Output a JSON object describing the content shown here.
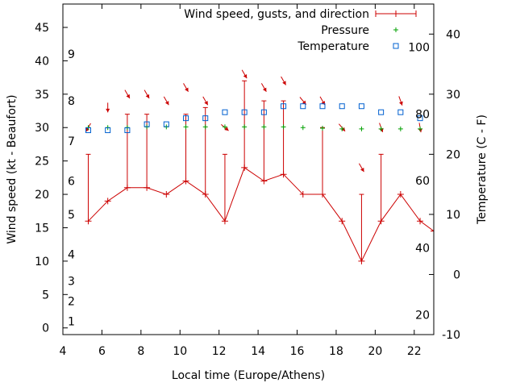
{
  "chart_data": {
    "type": "line",
    "xlabel": "Local time (Europe/Athens)",
    "ylabel": "Wind speed (kt - Beaufort)",
    "y2label": "Temperature (C - F)",
    "xlim": [
      4,
      23
    ],
    "ylim": [
      -1,
      48.5
    ],
    "y2lim": [
      -10,
      45
    ],
    "x_ticks": [
      "4",
      "6",
      "8",
      "10",
      "12",
      "14",
      "16",
      "18",
      "20",
      "22"
    ],
    "y_ticks": [
      "0",
      "5",
      "10",
      "15",
      "20",
      "25",
      "30",
      "35",
      "40",
      "45"
    ],
    "y2_ticks": [
      "-10",
      "0",
      "10",
      "20",
      "30",
      "40"
    ],
    "beaufort_labels": [
      {
        "text": "1",
        "y": 1
      },
      {
        "text": "2",
        "y": 4
      },
      {
        "text": "3",
        "y": 7
      },
      {
        "text": "4",
        "y": 11
      },
      {
        "text": "5",
        "y": 17
      },
      {
        "text": "6",
        "y": 22
      },
      {
        "text": "7",
        "y": 28
      },
      {
        "text": "8",
        "y": 34
      },
      {
        "text": "9",
        "y": 41
      }
    ],
    "fahrenheit_labels": [
      {
        "text": "20",
        "c": -6.7
      },
      {
        "text": "40",
        "c": 4.4
      },
      {
        "text": "60",
        "c": 15.6
      },
      {
        "text": "80",
        "c": 26.7
      },
      {
        "text": "100",
        "c": 37.8
      }
    ],
    "legend": [
      {
        "label": "Wind speed, gusts, and direction",
        "color": "#cc0000"
      },
      {
        "label": "Pressure",
        "color": "#00a000"
      },
      {
        "label": "Temperature",
        "color": "#0060d0"
      }
    ],
    "series": [
      {
        "name": "Wind speed, gusts, and direction",
        "color": "#cc0000",
        "x": [
          5.3,
          6.3,
          7.3,
          8.3,
          9.3,
          10.3,
          11.3,
          12.3,
          13.3,
          14.3,
          15.3,
          16.3,
          17.3,
          18.3,
          19.3,
          20.3,
          21.3,
          22.3,
          23.0
        ],
        "speed": [
          16,
          19,
          21,
          21,
          20,
          22,
          20,
          16,
          24,
          22,
          23,
          20,
          20,
          16,
          10,
          16,
          20,
          16,
          14.5
        ],
        "gust": [
          26,
          null,
          32,
          32,
          null,
          32,
          33,
          26,
          37,
          34,
          34,
          null,
          30,
          null,
          20,
          26,
          null,
          null,
          null
        ],
        "direction_deg": [
          30,
          360,
          330,
          330,
          330,
          330,
          330,
          310,
          330,
          330,
          330,
          320,
          330,
          320,
          330,
          340,
          340,
          350,
          null
        ]
      },
      {
        "name": "Pressure",
        "color": "#00a000",
        "x": [
          5.3,
          6.3,
          7.3,
          8.3,
          9.3,
          10.3,
          11.3,
          12.3,
          13.3,
          14.3,
          15.3,
          16.3,
          17.3,
          18.3,
          19.3,
          20.3,
          21.3,
          22.3
        ],
        "values": [
          30,
          30,
          30,
          30.1,
          30.1,
          30.1,
          30.1,
          30.1,
          30.1,
          30.1,
          30.1,
          30,
          29.9,
          29.8,
          29.8,
          29.8,
          29.8,
          29.8
        ]
      },
      {
        "name": "Temperature",
        "color": "#0060d0",
        "x": [
          5.3,
          6.3,
          7.3,
          8.3,
          9.3,
          10.3,
          11.3,
          12.3,
          13.3,
          14.3,
          15.3,
          16.3,
          17.3,
          18.3,
          19.3,
          20.3,
          21.3,
          22.3
        ],
        "values": [
          24,
          24,
          24,
          25,
          25,
          26,
          26,
          27,
          27,
          27,
          28,
          28,
          28,
          28,
          28,
          27,
          27,
          26
        ]
      }
    ]
  }
}
